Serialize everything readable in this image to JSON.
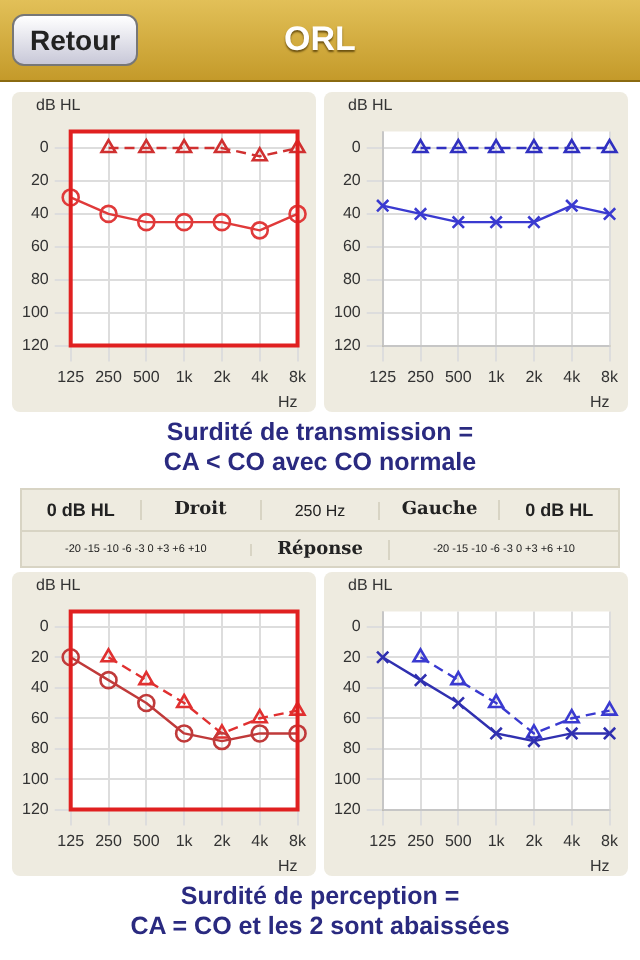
{
  "chart_data": [
    {
      "type": "other",
      "title": "ORL",
      "annotations": [
        "Retour"
      ]
    },
    {
      "type": "line",
      "categories": [
        "125",
        "250",
        "500",
        "1k",
        "2k",
        "4k",
        "8k"
      ],
      "xlabel": "Hz",
      "ylabel": "dB HL",
      "ylim": [
        120,
        -10
      ],
      "yticks": [
        0,
        20,
        40,
        60,
        80,
        100,
        120
      ],
      "grid": true,
      "legend": false,
      "series": [
        {
          "color": "#e03a3a",
          "values": [
            30,
            40,
            45,
            45,
            45,
            50,
            40
          ],
          "marker": "circle",
          "line_style": "solid"
        },
        {
          "color": "#d03030",
          "values": [
            null,
            0,
            0,
            0,
            0,
            5,
            0
          ],
          "marker": "triangle",
          "line_style": "dashed"
        }
      ]
    },
    {
      "type": "line",
      "categories": [
        "125",
        "250",
        "500",
        "1k",
        "2k",
        "4k",
        "8k"
      ],
      "xlabel": "Hz",
      "ylabel": "dB HL",
      "ylim": [
        120,
        -10
      ],
      "yticks": [
        0,
        20,
        40,
        60,
        80,
        100,
        120
      ],
      "grid": true,
      "legend": false,
      "series": [
        {
          "color": "#3a3ad0",
          "values": [
            35,
            40,
            45,
            45,
            45,
            35,
            40
          ],
          "marker": "cross",
          "line_style": "solid"
        },
        {
          "color": "#3030c0",
          "values": [
            null,
            0,
            0,
            0,
            0,
            0,
            0
          ],
          "marker": "triangle",
          "line_style": "dashed"
        }
      ]
    },
    {
      "type": "other",
      "annotations": [
        "Surdité de transmission =",
        "CA < CO avec CO normale"
      ]
    },
    {
      "type": "other",
      "annotations": [
        "0 dB HL",
        "Droit",
        "250 Hz",
        "Gauche",
        "0 dB HL",
        "-20 -15 -10 -6 -3 0 +3 +6 +10",
        "Réponse",
        "-20 -15 -10 -6 -3 0 +3 +6 +10"
      ]
    },
    {
      "type": "line",
      "categories": [
        "125",
        "250",
        "500",
        "1k",
        "2k",
        "4k",
        "8k"
      ],
      "xlabel": "Hz",
      "ylabel": "dB HL",
      "ylim": [
        120,
        -10
      ],
      "yticks": [
        0,
        20,
        40,
        60,
        80,
        100,
        120
      ],
      "grid": true,
      "legend": false,
      "series": [
        {
          "color": "#c03a3a",
          "values": [
            20,
            35,
            50,
            70,
            75,
            70,
            70
          ],
          "marker": "circle",
          "line_style": "solid"
        },
        {
          "color": "#e03030",
          "values": [
            null,
            20,
            35,
            50,
            70,
            60,
            55
          ],
          "marker": "triangle",
          "line_style": "dashed"
        }
      ]
    },
    {
      "type": "line",
      "categories": [
        "125",
        "250",
        "500",
        "1k",
        "2k",
        "4k",
        "8k"
      ],
      "xlabel": "Hz",
      "ylabel": "dB HL",
      "ylim": [
        120,
        -10
      ],
      "yticks": [
        0,
        20,
        40,
        60,
        80,
        100,
        120
      ],
      "grid": true,
      "legend": false,
      "series": [
        {
          "color": "#3030b0",
          "values": [
            20,
            35,
            50,
            70,
            75,
            70,
            70
          ],
          "marker": "cross",
          "line_style": "solid"
        },
        {
          "color": "#3a3ad0",
          "values": [
            null,
            20,
            35,
            50,
            70,
            60,
            55
          ],
          "marker": "triangle",
          "line_style": "dashed"
        }
      ]
    },
    {
      "type": "other",
      "annotations": [
        "Surdité de perception =",
        "CA = CO et les 2 sont abaissées"
      ]
    }
  ]
}
